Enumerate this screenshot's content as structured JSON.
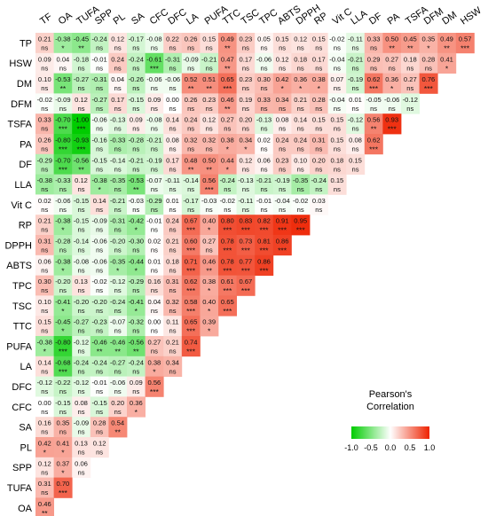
{
  "chart_data": {
    "type": "heatmap",
    "title": "",
    "xlabel": "",
    "ylabel": "",
    "columns": [
      "TF",
      "OA",
      "TUFA",
      "SPP",
      "PL",
      "SA",
      "CFC",
      "DFC",
      "LA",
      "PUFA",
      "TTC",
      "TSC",
      "TPC",
      "ABTS",
      "DPPH",
      "RP",
      "Vit C",
      "LLA",
      "DF",
      "PA",
      "TSFA",
      "DFM",
      "DM",
      "HSW"
    ],
    "rows": [
      {
        "label": "TP",
        "values": [
          "0.21",
          "-0.38",
          "-0.45",
          "-0.24",
          "0.12",
          "-0.17",
          "-0.08",
          "0.22",
          "0.26",
          "0.15",
          "0.49",
          "0.23",
          "0.05",
          "0.15",
          "0.12",
          "0.15",
          "-0.02",
          "-0.11",
          "0.33",
          "0.50",
          "0.45",
          "0.35",
          "0.49",
          "0.57"
        ],
        "sig": [
          "ns",
          "*",
          "**",
          "ns",
          "ns",
          "ns",
          "ns",
          "ns",
          "ns",
          "ns",
          "**",
          "ns",
          "ns",
          "ns",
          "ns",
          "ns",
          "ns",
          "ns",
          "ns",
          "**",
          "**",
          "*",
          "**",
          "***"
        ]
      },
      {
        "label": "HSW",
        "values": [
          "0.09",
          "0.04",
          "-0.18",
          "-0.01",
          "0.24",
          "-0.24",
          "-0.61",
          "-0.31",
          "-0.09",
          "-0.21",
          "0.47",
          "0.17",
          "-0.06",
          "0.12",
          "0.18",
          "0.17",
          "-0.04",
          "-0.21",
          "0.29",
          "0.27",
          "0.18",
          "0.28",
          "0.41"
        ],
        "sig": [
          "ns",
          "ns",
          "ns",
          "ns",
          "ns",
          "ns",
          "***",
          "ns",
          "ns",
          "ns",
          "**",
          "ns",
          "ns",
          "ns",
          "ns",
          "ns",
          "ns",
          "ns",
          "ns",
          "ns",
          "ns",
          "ns",
          "*"
        ]
      },
      {
        "label": "DM",
        "values": [
          "0.10",
          "-0.53",
          "-0.27",
          "-0.31",
          "0.04",
          "-0.26",
          "-0.06",
          "-0.06",
          "0.52",
          "0.51",
          "0.65",
          "0.23",
          "0.30",
          "0.42",
          "0.36",
          "0.38",
          "0.07",
          "-0.19",
          "0.62",
          "0.36",
          "0.27",
          "0.76"
        ],
        "sig": [
          "ns",
          "**",
          "ns",
          "ns",
          "ns",
          "ns",
          "ns",
          "ns",
          "**",
          "**",
          "***",
          "ns",
          "ns",
          "*",
          "*",
          "*",
          "ns",
          "ns",
          "***",
          "*",
          "ns",
          "***"
        ]
      },
      {
        "label": "DFM",
        "values": [
          "-0.02",
          "-0.09",
          "0.12",
          "-0.27",
          "0.17",
          "-0.15",
          "0.09",
          "0.00",
          "0.26",
          "0.23",
          "0.46",
          "0.19",
          "0.33",
          "0.34",
          "0.21",
          "0.28",
          "-0.04",
          "0.01",
          "-0.05",
          "-0.06",
          "-0.12"
        ],
        "sig": [
          "ns",
          "ns",
          "ns",
          "ns",
          "ns",
          "ns",
          "ns",
          "ns",
          "ns",
          "ns",
          "**",
          "ns",
          "ns",
          "ns",
          "ns",
          "ns",
          "ns",
          "ns",
          "ns",
          "ns",
          "ns"
        ]
      },
      {
        "label": "TSFA",
        "values": [
          "0.33",
          "-0.70",
          "-1.00",
          "-0.06",
          "-0.13",
          "0.09",
          "-0.08",
          "0.14",
          "0.24",
          "0.12",
          "0.27",
          "0.20",
          "-0.13",
          "0.08",
          "0.14",
          "0.15",
          "0.15",
          "-0.12",
          "0.56",
          "0.93"
        ],
        "sig": [
          "ns",
          "***",
          "***",
          "ns",
          "ns",
          "ns",
          "ns",
          "ns",
          "ns",
          "ns",
          "ns",
          "ns",
          "ns",
          "ns",
          "ns",
          "ns",
          "ns",
          "ns",
          "**",
          "***"
        ]
      },
      {
        "label": "PA",
        "values": [
          "0.26",
          "-0.80",
          "-0.93",
          "-0.16",
          "-0.33",
          "-0.28",
          "-0.21",
          "0.08",
          "0.32",
          "0.32",
          "0.38",
          "0.34",
          "0.02",
          "0.24",
          "0.24",
          "0.31",
          "0.15",
          "0.08",
          "0.62"
        ],
        "sig": [
          "ns",
          "***",
          "***",
          "ns",
          "ns",
          "ns",
          "ns",
          "ns",
          "ns",
          "ns",
          "*",
          "*",
          "ns",
          "ns",
          "ns",
          "ns",
          "ns",
          "ns",
          "***"
        ]
      },
      {
        "label": "DF",
        "values": [
          "-0.29",
          "-0.70",
          "-0.56",
          "-0.15",
          "-0.14",
          "-0.21",
          "-0.19",
          "0.17",
          "0.48",
          "0.50",
          "0.44",
          "0.12",
          "0.06",
          "0.23",
          "0.10",
          "0.20",
          "0.18",
          "0.15"
        ],
        "sig": [
          "ns",
          "***",
          "**",
          "ns",
          "ns",
          "ns",
          "ns",
          "ns",
          "**",
          "**",
          "*",
          "ns",
          "ns",
          "ns",
          "ns",
          "ns",
          "ns",
          "ns"
        ]
      },
      {
        "label": "LLA",
        "values": [
          "-0.38",
          "-0.33",
          "0.12",
          "-0.38",
          "-0.35",
          "-0.53",
          "-0.07",
          "-0.11",
          "-0.14",
          "0.56",
          "-0.24",
          "-0.13",
          "-0.21",
          "-0.19",
          "-0.35",
          "-0.24",
          "0.15"
        ],
        "sig": [
          "ns",
          "ns",
          "ns",
          "*",
          "ns",
          "**",
          "ns",
          "ns",
          "ns",
          "***",
          "ns",
          "ns",
          "ns",
          "ns",
          "ns",
          "ns",
          "ns"
        ]
      },
      {
        "label": "Vit C",
        "values": [
          "0.02",
          "-0.06",
          "-0.15",
          "0.14",
          "-0.21",
          "-0.03",
          "-0.29",
          "0.01",
          "-0.17",
          "-0.03",
          "-0.02",
          "-0.11",
          "-0.01",
          "-0.04",
          "-0.02",
          "0.03"
        ],
        "sig": [
          "ns",
          "ns",
          "ns",
          "ns",
          "ns",
          "ns",
          "ns",
          "ns",
          "ns",
          "ns",
          "ns",
          "ns",
          "ns",
          "ns",
          "ns",
          "ns"
        ]
      },
      {
        "label": "RP",
        "values": [
          "0.21",
          "-0.38",
          "-0.15",
          "-0.09",
          "-0.31",
          "-0.42",
          "-0.01",
          "0.24",
          "0.67",
          "0.40",
          "0.80",
          "0.83",
          "0.82",
          "0.91",
          "0.95"
        ],
        "sig": [
          "ns",
          "*",
          "ns",
          "ns",
          "ns",
          "*",
          "ns",
          "ns",
          "***",
          "*",
          "***",
          "***",
          "***",
          "***",
          "***"
        ]
      },
      {
        "label": "DPPH",
        "values": [
          "0.31",
          "-0.28",
          "-0.14",
          "-0.06",
          "-0.20",
          "-0.30",
          "0.02",
          "0.21",
          "0.60",
          "0.27",
          "0.78",
          "0.73",
          "0.81",
          "0.86"
        ],
        "sig": [
          "ns",
          "ns",
          "ns",
          "ns",
          "ns",
          "ns",
          "ns",
          "ns",
          "***",
          "ns",
          "***",
          "***",
          "***",
          "***"
        ]
      },
      {
        "label": "ABTS",
        "values": [
          "0.06",
          "-0.38",
          "-0.08",
          "-0.06",
          "-0.35",
          "-0.44",
          "0.01",
          "0.18",
          "0.71",
          "0.46",
          "0.78",
          "0.77",
          "0.86"
        ],
        "sig": [
          "ns",
          "*",
          "ns",
          "ns",
          "*",
          "*",
          "ns",
          "ns",
          "***",
          "**",
          "***",
          "***",
          "***"
        ]
      },
      {
        "label": "TPC",
        "values": [
          "0.30",
          "-0.20",
          "0.13",
          "-0.02",
          "-0.12",
          "-0.29",
          "0.16",
          "0.31",
          "0.62",
          "0.38",
          "0.61",
          "0.67"
        ],
        "sig": [
          "ns",
          "ns",
          "ns",
          "ns",
          "ns",
          "ns",
          "ns",
          "ns",
          "***",
          "*",
          "***",
          "***"
        ]
      },
      {
        "label": "TSC",
        "values": [
          "0.10",
          "-0.41",
          "-0.20",
          "-0.20",
          "-0.24",
          "-0.41",
          "0.04",
          "0.32",
          "0.58",
          "0.40",
          "0.65"
        ],
        "sig": [
          "ns",
          "*",
          "ns",
          "ns",
          "ns",
          "*",
          "ns",
          "ns",
          "***",
          "*",
          "***"
        ]
      },
      {
        "label": "TTC",
        "values": [
          "0.15",
          "-0.45",
          "-0.27",
          "-0.23",
          "-0.07",
          "-0.32",
          "0.00",
          "0.11",
          "0.65",
          "0.39"
        ],
        "sig": [
          "ns",
          "*",
          "ns",
          "ns",
          "ns",
          "ns",
          "ns",
          "ns",
          "***",
          "*"
        ]
      },
      {
        "label": "PUFA",
        "values": [
          "-0.38",
          "-0.80",
          "-0.12",
          "-0.46",
          "-0.46",
          "-0.56",
          "0.27",
          "0.21",
          "0.74"
        ],
        "sig": [
          "*",
          "***",
          "ns",
          "**",
          "**",
          "**",
          "ns",
          "ns",
          "***"
        ]
      },
      {
        "label": "LA",
        "values": [
          "0.14",
          "-0.68",
          "-0.24",
          "-0.24",
          "-0.27",
          "-0.24",
          "0.38",
          "0.34"
        ],
        "sig": [
          "ns",
          "***",
          "ns",
          "ns",
          "ns",
          "ns",
          "*",
          "ns"
        ]
      },
      {
        "label": "DFC",
        "values": [
          "-0.12",
          "-0.22",
          "-0.12",
          "-0.01",
          "-0.06",
          "0.09",
          "0.56"
        ],
        "sig": [
          "ns",
          "ns",
          "ns",
          "ns",
          "ns",
          "ns",
          "***"
        ]
      },
      {
        "label": "CFC",
        "values": [
          "0.00",
          "-0.15",
          "0.08",
          "-0.15",
          "0.20",
          "0.36"
        ],
        "sig": [
          "ns",
          "ns",
          "ns",
          "ns",
          "ns",
          "*"
        ]
      },
      {
        "label": "SA",
        "values": [
          "0.16",
          "0.35",
          "-0.09",
          "0.28",
          "0.54"
        ],
        "sig": [
          "ns",
          "ns",
          "ns",
          "ns",
          "**"
        ]
      },
      {
        "label": "PL",
        "values": [
          "0.42",
          "0.41",
          "0.13",
          "0.12"
        ],
        "sig": [
          "*",
          "*",
          "ns",
          "ns"
        ]
      },
      {
        "label": "SPP",
        "values": [
          "0.12",
          "0.37",
          "0.06"
        ],
        "sig": [
          "ns",
          "*",
          "ns"
        ]
      },
      {
        "label": "TUFA",
        "values": [
          "0.31",
          "0.70"
        ],
        "sig": [
          "ns",
          "***"
        ]
      },
      {
        "label": "OA",
        "values": [
          "0.46"
        ],
        "sig": [
          "**"
        ]
      }
    ],
    "colorscale": {
      "low": "#00cc00",
      "mid": "#ffffff",
      "high": "#ee2200",
      "range": [
        -1.0,
        1.0
      ]
    },
    "legend": {
      "title_line1": "Pearson's",
      "title_line2": "Correlation",
      "ticks": [
        "-1.0",
        "-0.5",
        "0.0",
        "0.5",
        "1.0"
      ],
      "placement": "bottom-right"
    }
  }
}
